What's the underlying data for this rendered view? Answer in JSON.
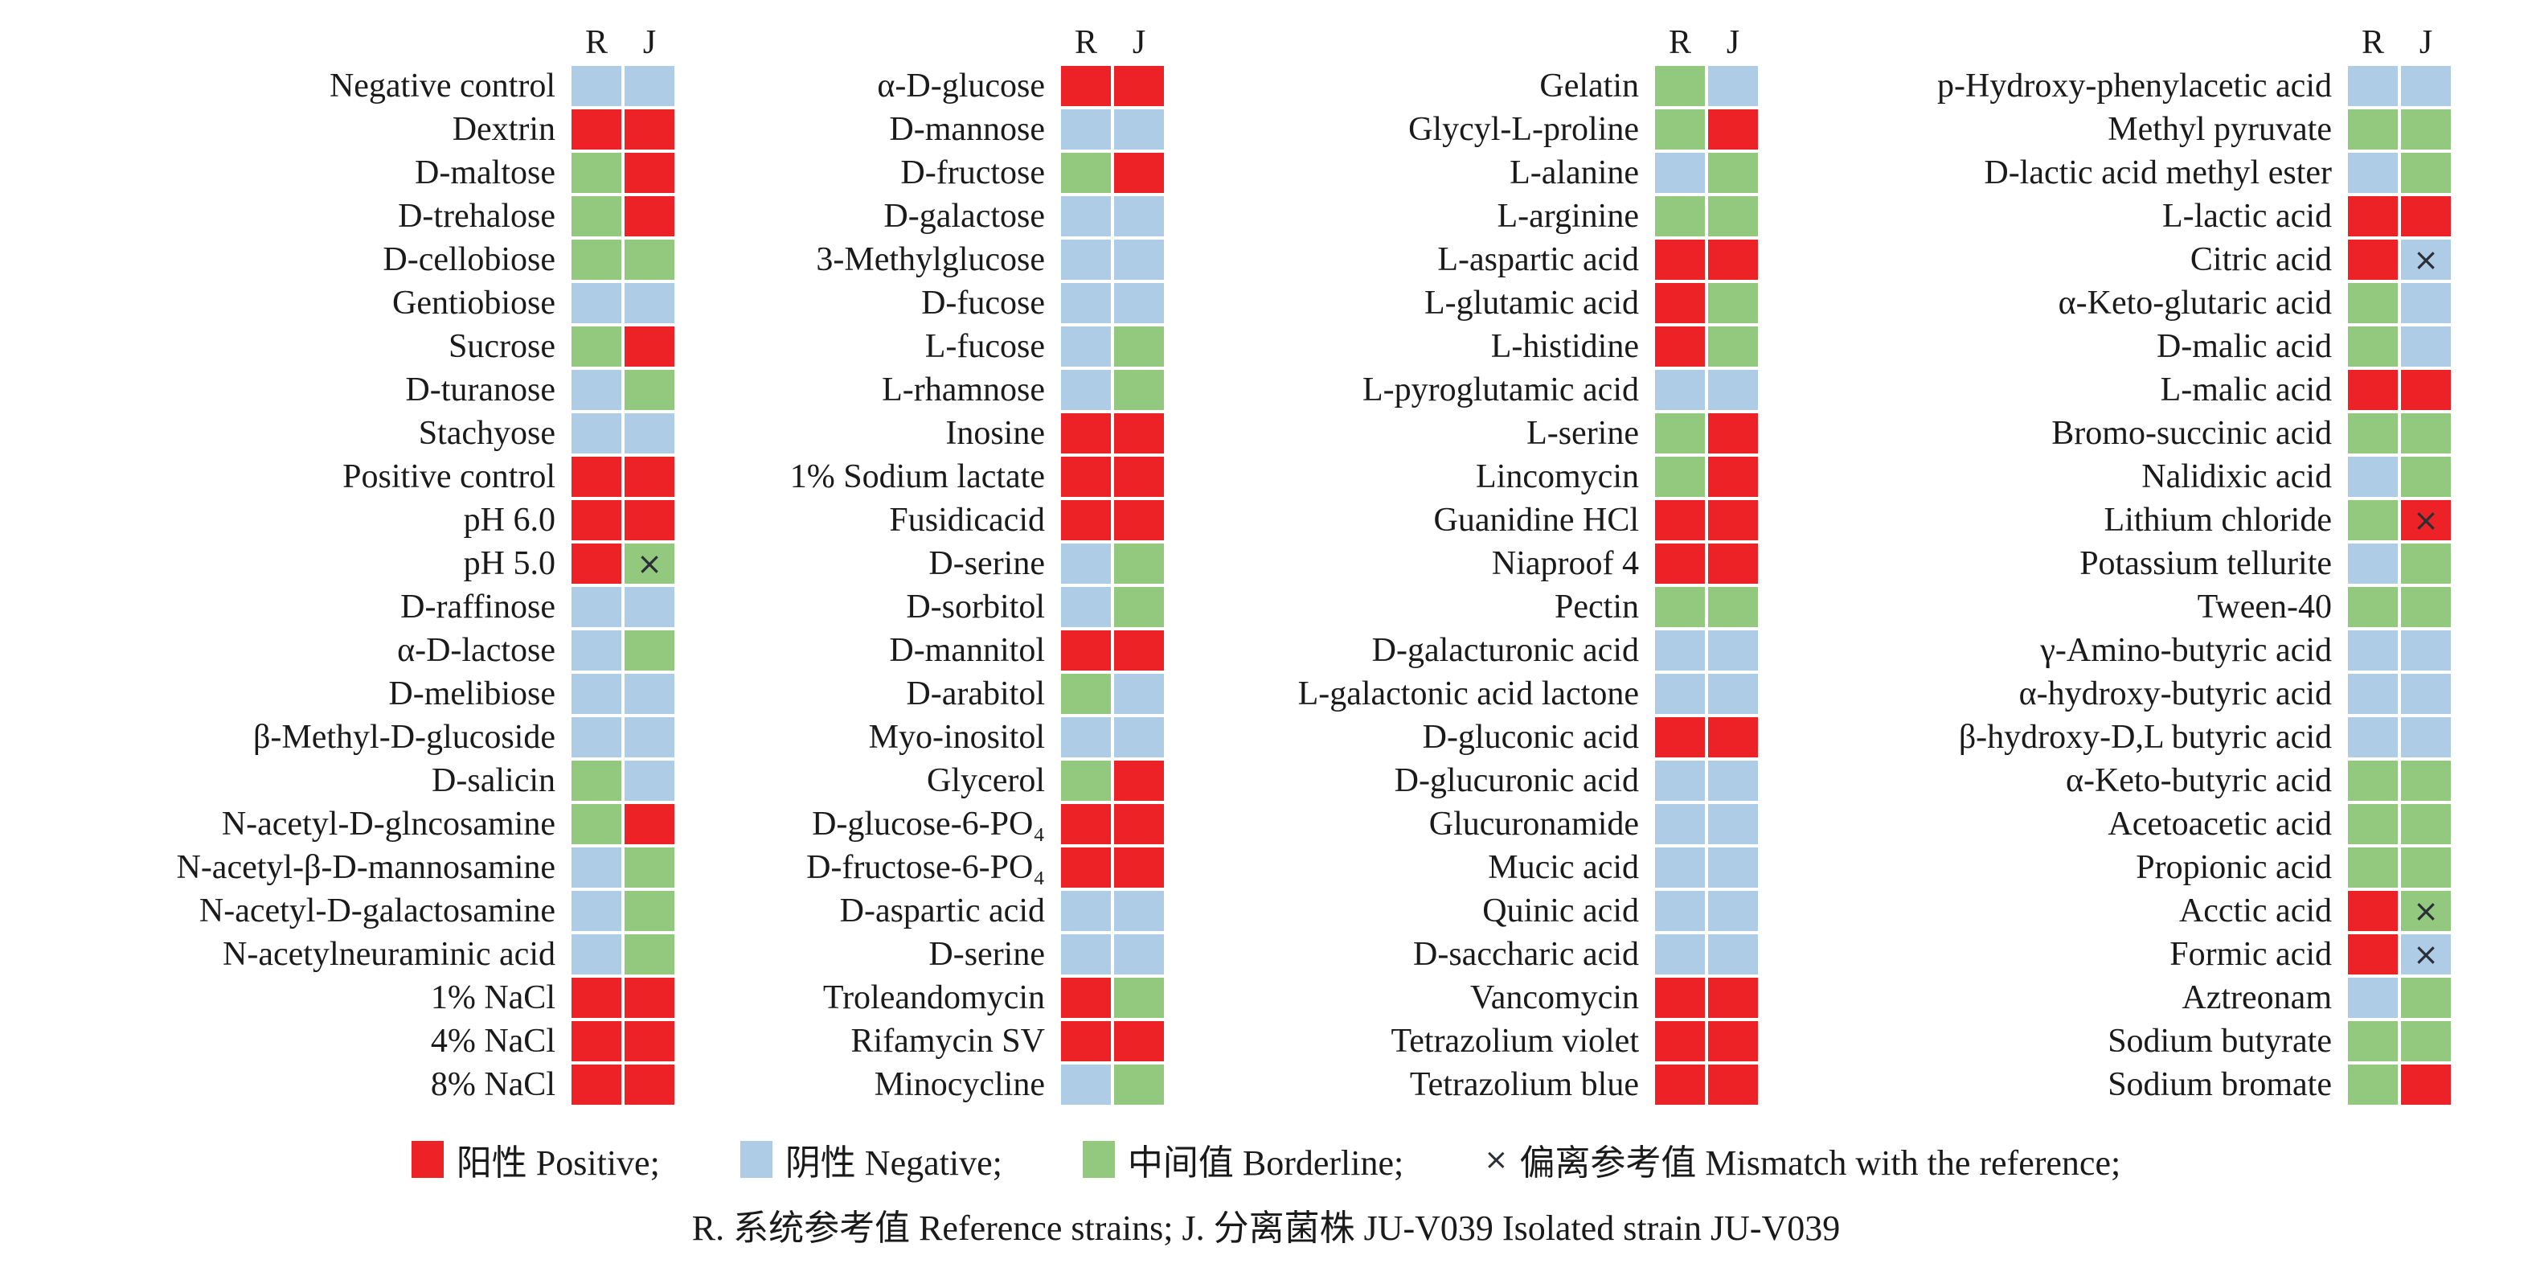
{
  "header": {
    "r_label": "R",
    "j_label": "J"
  },
  "colors": {
    "positive": "#ED2226",
    "negative": "#AECCE6",
    "borderline": "#92C97E",
    "mismatch_mark": "#2a2e35"
  },
  "marks": {
    "mismatch": "×"
  },
  "legend": [
    {
      "swatch": "P",
      "label": "阳性 Positive;"
    },
    {
      "swatch": "N",
      "label": "阴性 Negative;"
    },
    {
      "swatch": "B",
      "label": "中间值 Borderline;"
    },
    {
      "swatch": "x",
      "label": "偏离参考值 Mismatch with the reference;"
    }
  ],
  "footnote": "R. 系统参考值 Reference strains;  J. 分离菌株 JU-V039 Isolated strain JU-V039",
  "chart_data": {
    "type": "heatmap",
    "columns": [
      "R",
      "J"
    ],
    "value_codes": {
      "P": "Positive 阳性",
      "N": "Negative 阴性",
      "B": "Borderline 中间值",
      "x": "Mismatch with the reference 偏离参考值"
    },
    "groups": [
      {
        "rows": [
          {
            "label": "Negative control",
            "r": "N",
            "j": "N"
          },
          {
            "label": "Dextrin",
            "r": "P",
            "j": "P"
          },
          {
            "label": "D-maltose",
            "r": "B",
            "j": "P"
          },
          {
            "label": "D-trehalose",
            "r": "B",
            "j": "P"
          },
          {
            "label": "D-cellobiose",
            "r": "B",
            "j": "B"
          },
          {
            "label": "Gentiobiose",
            "r": "N",
            "j": "N"
          },
          {
            "label": "Sucrose",
            "r": "B",
            "j": "P"
          },
          {
            "label": "D-turanose",
            "r": "N",
            "j": "B"
          },
          {
            "label": "Stachyose",
            "r": "N",
            "j": "N"
          },
          {
            "label": "Positive control",
            "r": "P",
            "j": "P"
          },
          {
            "label": "pH 6.0",
            "r": "P",
            "j": "P"
          },
          {
            "label": "pH 5.0",
            "r": "P",
            "j": "B",
            "x": "J"
          },
          {
            "label": "D-raffinose",
            "r": "N",
            "j": "N"
          },
          {
            "label": "α-D-lactose",
            "r": "N",
            "j": "B"
          },
          {
            "label": "D-melibiose",
            "r": "N",
            "j": "N"
          },
          {
            "label": "β-Methyl-D-glucoside",
            "r": "N",
            "j": "N"
          },
          {
            "label": "D-salicin",
            "r": "B",
            "j": "N"
          },
          {
            "label": "N-acetyl-D-glncosamine",
            "r": "B",
            "j": "P"
          },
          {
            "label": "N-acetyl-β-D-mannosamine",
            "r": "N",
            "j": "B"
          },
          {
            "label": "N-acetyl-D-galactosamine",
            "r": "N",
            "j": "B"
          },
          {
            "label": "N-acetylneuraminic acid",
            "r": "N",
            "j": "B"
          },
          {
            "label": "1% NaCl",
            "r": "P",
            "j": "P"
          },
          {
            "label": "4% NaCl",
            "r": "P",
            "j": "P"
          },
          {
            "label": "8% NaCl",
            "r": "P",
            "j": "P"
          }
        ]
      },
      {
        "rows": [
          {
            "label": "α-D-glucose",
            "r": "P",
            "j": "P"
          },
          {
            "label": "D-mannose",
            "r": "N",
            "j": "N"
          },
          {
            "label": "D-fructose",
            "r": "B",
            "j": "P"
          },
          {
            "label": "D-galactose",
            "r": "N",
            "j": "N"
          },
          {
            "label": "3-Methylglucose",
            "r": "N",
            "j": "N"
          },
          {
            "label": "D-fucose",
            "r": "N",
            "j": "N"
          },
          {
            "label": "L-fucose",
            "r": "N",
            "j": "B"
          },
          {
            "label": "L-rhamnose",
            "r": "N",
            "j": "B"
          },
          {
            "label": "Inosine",
            "r": "P",
            "j": "P"
          },
          {
            "label": "1% Sodium lactate",
            "r": "P",
            "j": "P"
          },
          {
            "label": "Fusidicacid",
            "r": "P",
            "j": "P"
          },
          {
            "label": "D-serine",
            "r": "N",
            "j": "B"
          },
          {
            "label": "D-sorbitol",
            "r": "N",
            "j": "B"
          },
          {
            "label": "D-mannitol",
            "r": "P",
            "j": "P"
          },
          {
            "label": "D-arabitol",
            "r": "B",
            "j": "N"
          },
          {
            "label": "Myo-inositol",
            "r": "N",
            "j": "N"
          },
          {
            "label": "Glycerol",
            "r": "B",
            "j": "P"
          },
          {
            "label": "D-glucose-6-PO₄",
            "r": "P",
            "j": "P"
          },
          {
            "label": "D-fructose-6-PO₄",
            "r": "P",
            "j": "P"
          },
          {
            "label": "D-aspartic acid",
            "r": "N",
            "j": "N"
          },
          {
            "label": "D-serine",
            "r": "N",
            "j": "N"
          },
          {
            "label": "Troleandomycin",
            "r": "P",
            "j": "B"
          },
          {
            "label": "Rifamycin SV",
            "r": "P",
            "j": "P"
          },
          {
            "label": "Minocycline",
            "r": "N",
            "j": "B"
          }
        ]
      },
      {
        "rows": [
          {
            "label": "Gelatin",
            "r": "B",
            "j": "N"
          },
          {
            "label": "Glycyl-L-proline",
            "r": "B",
            "j": "P"
          },
          {
            "label": "L-alanine",
            "r": "N",
            "j": "B"
          },
          {
            "label": "L-arginine",
            "r": "B",
            "j": "B"
          },
          {
            "label": "L-aspartic acid",
            "r": "P",
            "j": "P"
          },
          {
            "label": "L-glutamic acid",
            "r": "P",
            "j": "B"
          },
          {
            "label": "L-histidine",
            "r": "P",
            "j": "B"
          },
          {
            "label": "L-pyroglutamic acid",
            "r": "N",
            "j": "N"
          },
          {
            "label": "L-serine",
            "r": "B",
            "j": "P"
          },
          {
            "label": "Lincomycin",
            "r": "B",
            "j": "P"
          },
          {
            "label": "Guanidine HCl",
            "r": "P",
            "j": "P"
          },
          {
            "label": "Niaproof 4",
            "r": "P",
            "j": "P"
          },
          {
            "label": "Pectin",
            "r": "B",
            "j": "B"
          },
          {
            "label": "D-galacturonic acid",
            "r": "N",
            "j": "N"
          },
          {
            "label": "L-galactonic acid lactone",
            "r": "N",
            "j": "N"
          },
          {
            "label": "D-gluconic acid",
            "r": "P",
            "j": "P"
          },
          {
            "label": "D-glucuronic acid",
            "r": "N",
            "j": "N"
          },
          {
            "label": "Glucuronamide",
            "r": "N",
            "j": "N"
          },
          {
            "label": "Mucic acid",
            "r": "N",
            "j": "N"
          },
          {
            "label": "Quinic acid",
            "r": "N",
            "j": "N"
          },
          {
            "label": "D-saccharic acid",
            "r": "N",
            "j": "N"
          },
          {
            "label": "Vancomycin",
            "r": "P",
            "j": "P"
          },
          {
            "label": "Tetrazolium violet",
            "r": "P",
            "j": "P"
          },
          {
            "label": "Tetrazolium blue",
            "r": "P",
            "j": "P"
          }
        ]
      },
      {
        "rows": [
          {
            "label": "p-Hydroxy-phenylacetic acid",
            "r": "N",
            "j": "N"
          },
          {
            "label": "Methyl pyruvate",
            "r": "B",
            "j": "B"
          },
          {
            "label": "D-lactic acid methyl ester",
            "r": "N",
            "j": "B"
          },
          {
            "label": "L-lactic acid",
            "r": "P",
            "j": "P"
          },
          {
            "label": "Citric acid",
            "r": "P",
            "j": "N",
            "x": "J"
          },
          {
            "label": "α-Keto-glutaric acid",
            "r": "B",
            "j": "N"
          },
          {
            "label": "D-malic acid",
            "r": "B",
            "j": "N"
          },
          {
            "label": "L-malic acid",
            "r": "P",
            "j": "P"
          },
          {
            "label": "Bromo-succinic acid",
            "r": "B",
            "j": "B"
          },
          {
            "label": "Nalidixic acid",
            "r": "N",
            "j": "B"
          },
          {
            "label": "Lithium chloride",
            "r": "B",
            "j": "P",
            "x": "J"
          },
          {
            "label": "Potassium tellurite",
            "r": "N",
            "j": "B"
          },
          {
            "label": "Tween-40",
            "r": "B",
            "j": "B"
          },
          {
            "label": "γ-Amino-butyric acid",
            "r": "N",
            "j": "N"
          },
          {
            "label": "α-hydroxy-butyric acid",
            "r": "N",
            "j": "N"
          },
          {
            "label": "β-hydroxy-D,L butyric acid",
            "r": "N",
            "j": "N"
          },
          {
            "label": "α-Keto-butyric acid",
            "r": "B",
            "j": "B"
          },
          {
            "label": "Acetoacetic acid",
            "r": "B",
            "j": "B"
          },
          {
            "label": "Propionic acid",
            "r": "B",
            "j": "B"
          },
          {
            "label": "Acctic acid",
            "r": "P",
            "j": "B",
            "x": "J"
          },
          {
            "label": "Formic acid",
            "r": "P",
            "j": "N",
            "x": "J"
          },
          {
            "label": "Aztreonam",
            "r": "N",
            "j": "B"
          },
          {
            "label": "Sodium butyrate",
            "r": "B",
            "j": "B"
          },
          {
            "label": "Sodium bromate",
            "r": "B",
            "j": "P"
          }
        ]
      }
    ]
  }
}
